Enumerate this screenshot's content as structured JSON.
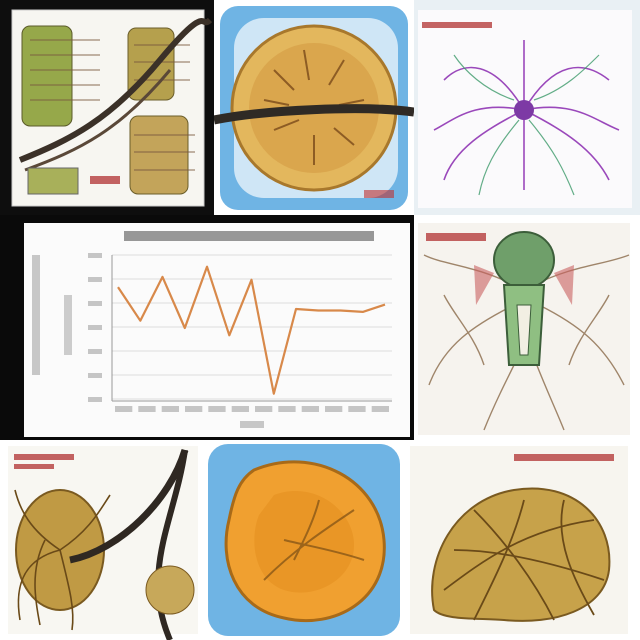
{
  "panels": [
    {
      "id": "top-left"
    },
    {
      "id": "top-middle"
    },
    {
      "id": "top-right"
    },
    {
      "id": "middle-left-chart"
    },
    {
      "id": "middle-right"
    },
    {
      "id": "bottom-left"
    },
    {
      "id": "bottom-middle"
    },
    {
      "id": "bottom-right"
    }
  ],
  "chart": {
    "x_labels": [
      "",
      "",
      "",
      "",
      "",
      "",
      "",
      "",
      "",
      "",
      "",
      ""
    ],
    "line": {
      "color": "#d8894a",
      "points_norm": [
        0.78,
        0.55,
        0.85,
        0.5,
        0.92,
        0.45,
        0.83,
        0.05,
        0.63,
        0.62,
        0.62,
        0.61,
        0.66
      ]
    }
  }
}
